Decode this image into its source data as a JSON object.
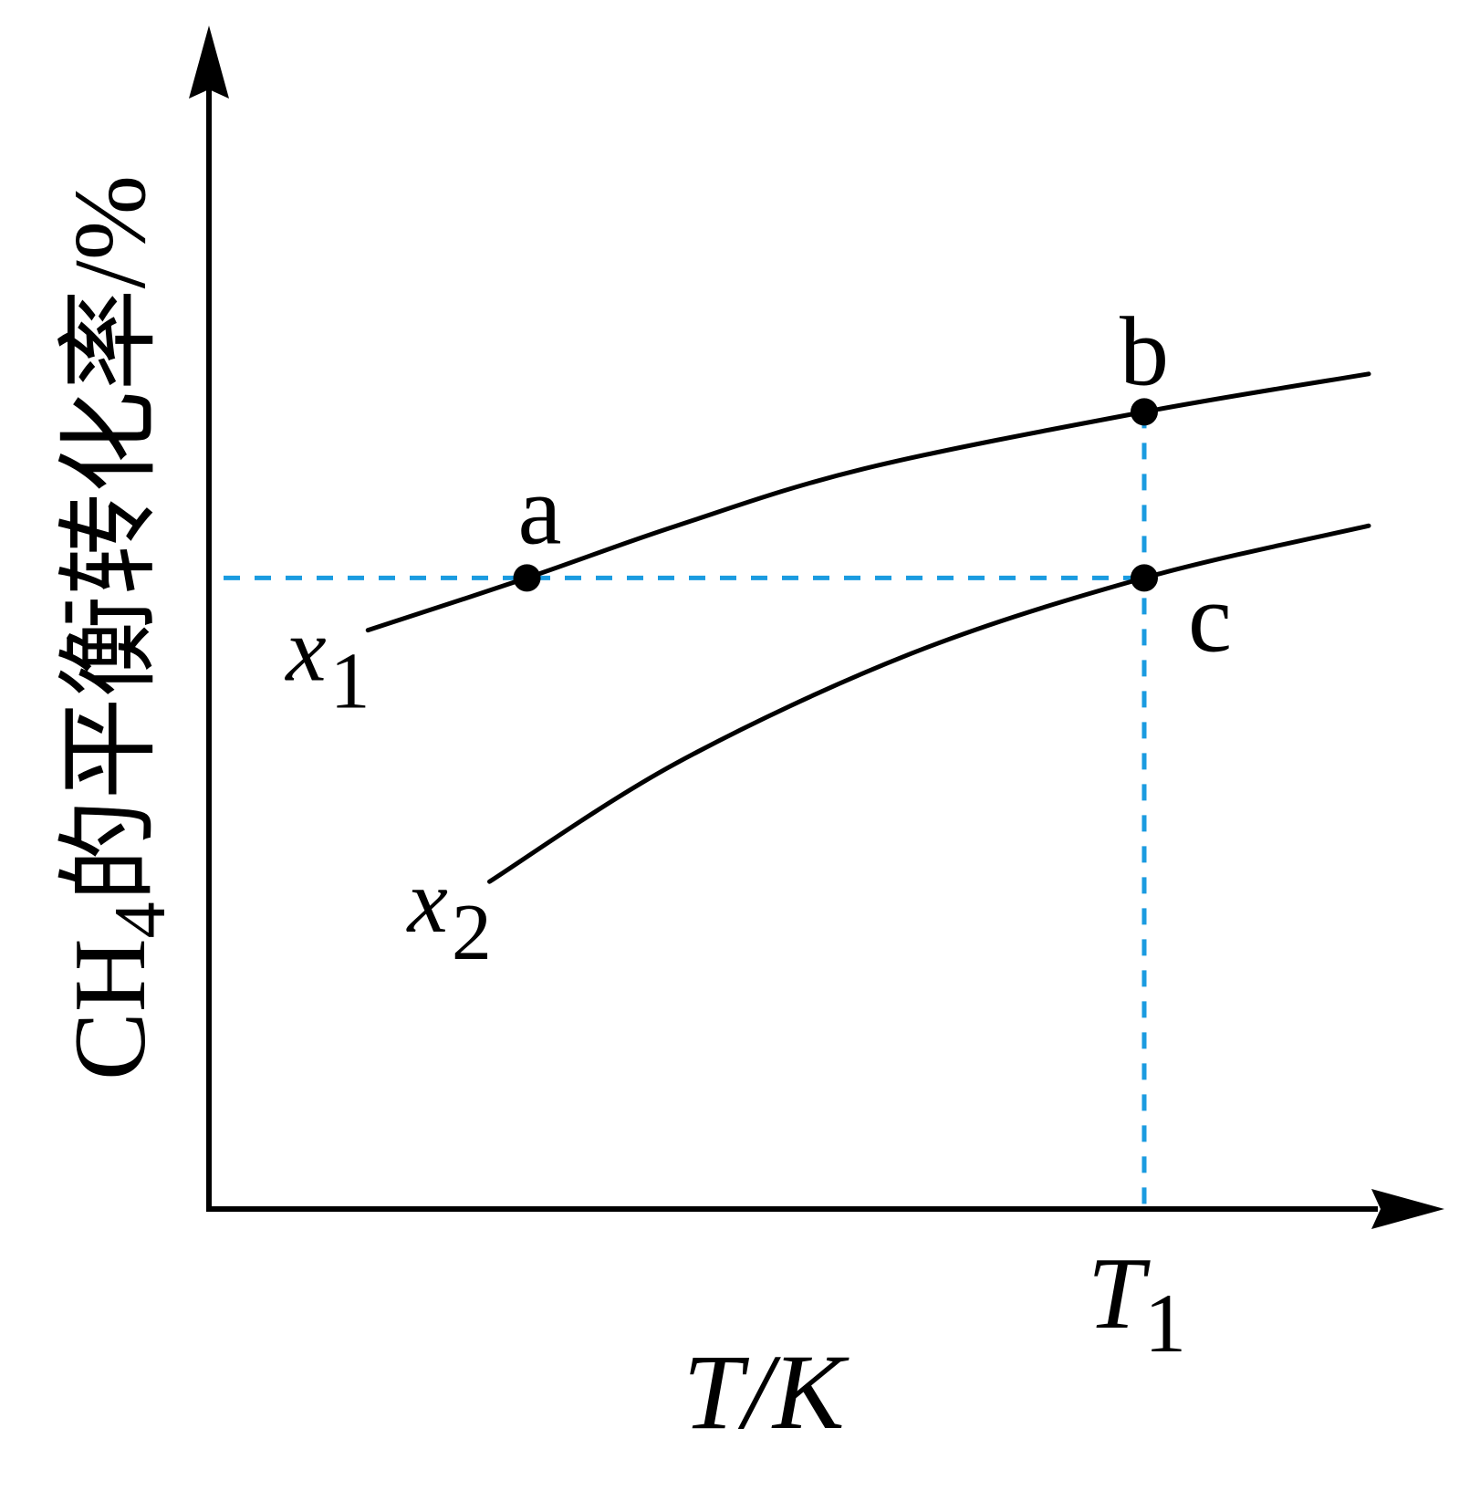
{
  "chart_data": {
    "type": "line",
    "xlabel": "T/K",
    "ylabel": {
      "prefix": "CH",
      "sub": "4",
      "suffix": "的平衡转化率/%"
    },
    "x_ticks": [
      {
        "x": 1.0,
        "main": "T",
        "sub": "1"
      }
    ],
    "series": [
      {
        "name": "x1",
        "label_main": "x",
        "label_sub": "1",
        "x": [
          0.17,
          0.34,
          0.5,
          0.7,
          1.0,
          1.24
        ],
        "y": [
          0.61,
          0.665,
          0.72,
          0.78,
          0.84,
          0.88
        ]
      },
      {
        "name": "x2",
        "label_main": "x",
        "label_sub": "2",
        "x": [
          0.3,
          0.5,
          0.75,
          1.0,
          1.24
        ],
        "y": [
          0.345,
          0.47,
          0.585,
          0.665,
          0.72
        ]
      }
    ],
    "points": [
      {
        "label": "a",
        "x": 0.34,
        "y": 0.665
      },
      {
        "label": "b",
        "x": 1.0,
        "y": 0.84
      },
      {
        "label": "c",
        "x": 1.0,
        "y": 0.665
      }
    ],
    "guides": {
      "horizontal_y": 0.665,
      "vertical_x": 1.0
    },
    "colors": {
      "curve": "#000000",
      "guide": "#1a9be0"
    },
    "grid": false
  }
}
